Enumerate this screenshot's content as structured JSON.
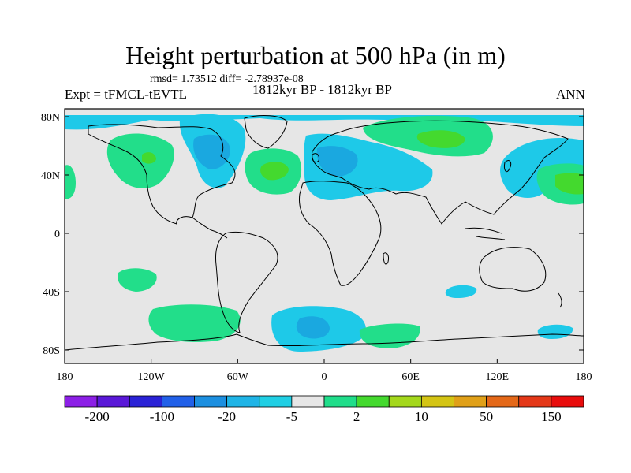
{
  "title": "Height perturbation at 500 hPa (in m)",
  "stats": "rmsd= 1.73512 diff= -2.78937e-08",
  "experiment": "Expt = tFMCL-tEVTL",
  "period": "1812kyr BP - 1812kyr BP",
  "season": "ANN",
  "lat_ticks": [
    "80N",
    "40N",
    "0",
    "40S",
    "80S"
  ],
  "lon_ticks": [
    "180",
    "120W",
    "60W",
    "0",
    "60E",
    "120E",
    "180"
  ],
  "colorbar": {
    "colors": [
      "#8c1fe6",
      "#5a18d8",
      "#2a22d6",
      "#2160e8",
      "#1c8fe0",
      "#1fb4e6",
      "#20cfe4",
      "#e6e6e6",
      "#20dd8a",
      "#44d92e",
      "#a4d81c",
      "#d4c414",
      "#e0a018",
      "#e46818",
      "#e43818",
      "#e80c0c"
    ],
    "labels": [
      "-200",
      "-100",
      "-20",
      "-5",
      "2",
      "10",
      "50",
      "150"
    ]
  },
  "map_colors": {
    "background": "#e6e6e6",
    "light_blue": "#1ec9e8",
    "blue": "#1aa8e0",
    "light_green": "#22de8a",
    "green": "#44d92e",
    "coast": "#000000"
  }
}
